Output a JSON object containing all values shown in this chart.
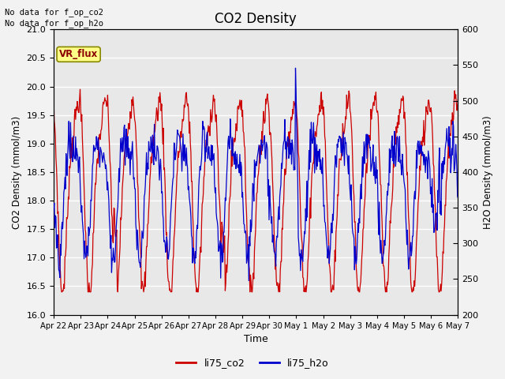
{
  "title": "CO2 Density",
  "xlabel": "Time",
  "ylabel_left": "CO2 Density (mmol/m3)",
  "ylabel_right": "H2O Density (mmol/m3)",
  "annotation_text": "No data for f_op_co2\nNo data for f_op_h2o",
  "vr_flux_label": "VR_flux",
  "legend_co2": "li75_co2",
  "legend_h2o": "li75_h2o",
  "co2_color": "#cc0000",
  "h2o_color": "#0000cc",
  "ylim_co2": [
    16.0,
    21.0
  ],
  "ylim_h2o": [
    200,
    600
  ],
  "yticks_co2": [
    16.0,
    16.5,
    17.0,
    17.5,
    18.0,
    18.5,
    19.0,
    19.5,
    20.0,
    20.5,
    21.0
  ],
  "yticks_h2o": [
    200,
    250,
    300,
    350,
    400,
    450,
    500,
    550,
    600
  ],
  "plot_bg_color": "#e8e8e8",
  "fig_bg_color": "#f2f2f2",
  "grid_color": "#ffffff",
  "num_points": 720,
  "xtick_labels": [
    "Apr 22",
    "Apr 23",
    "Apr 24",
    "Apr 25",
    "Apr 26",
    "Apr 27",
    "Apr 28",
    "Apr 29",
    "Apr 30",
    "May 1",
    "May 2",
    "May 3",
    "May 4",
    "May 5",
    "May 6",
    "May 7"
  ],
  "xtick_positions_norm": [
    0.0,
    0.0667,
    0.1333,
    0.2,
    0.2667,
    0.3333,
    0.4,
    0.4667,
    0.5333,
    0.6,
    0.6667,
    0.7333,
    0.8,
    0.8667,
    0.9333,
    1.0
  ]
}
